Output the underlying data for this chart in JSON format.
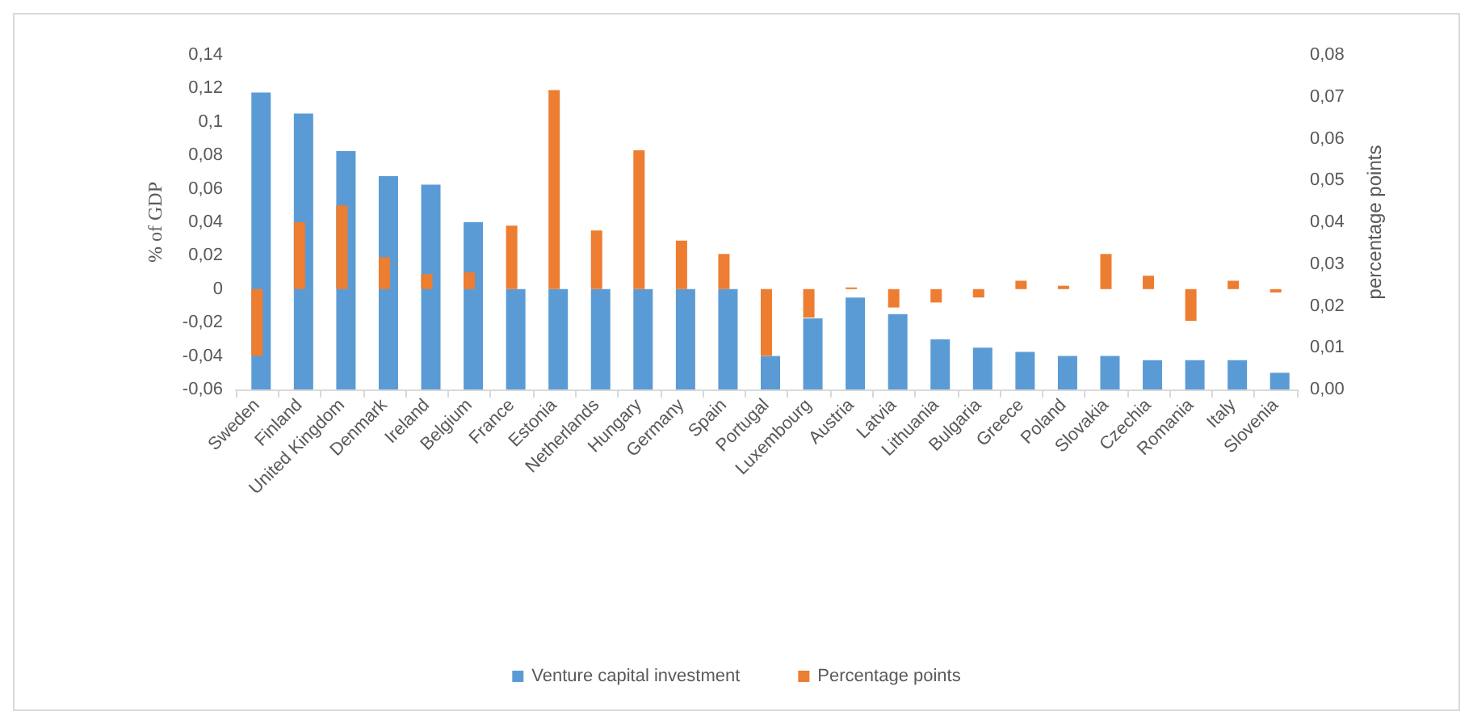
{
  "chart_data": {
    "type": "bar",
    "categories": [
      "Sweden",
      "Finland",
      "United Kingdom",
      "Denmark",
      "Ireland",
      "Belgium",
      "France",
      "Estonia",
      "Netherlands",
      "Hungary",
      "Germany",
      "Spain",
      "Portugal",
      "Luxembourg",
      "Austria",
      "Latvia",
      "Lithuania",
      "Bulgaria",
      "Greece",
      "Poland",
      "Slovakia",
      "Czechia",
      "Romania",
      "Italy",
      "Slovenia"
    ],
    "series": [
      {
        "name": "Venture capital investment",
        "color": "#5b9bd5",
        "axis": "y2",
        "values": [
          0.071,
          0.066,
          0.057,
          0.051,
          0.049,
          0.04,
          0.024,
          0.024,
          0.024,
          0.024,
          0.024,
          0.024,
          0.008,
          0.017,
          0.022,
          0.018,
          0.012,
          0.01,
          0.009,
          0.008,
          0.008,
          0.007,
          0.007,
          0.007,
          0.004
        ]
      },
      {
        "name": "Percentage points",
        "color": "#ed7d31",
        "axis": "y",
        "values": [
          -0.04,
          0.04,
          0.05,
          0.019,
          0.009,
          0.01,
          0.038,
          0.119,
          0.035,
          0.083,
          0.029,
          0.021,
          -0.04,
          -0.017,
          0.001,
          -0.011,
          -0.008,
          -0.005,
          0.005,
          0.002,
          0.021,
          0.008,
          -0.019,
          0.005,
          -0.002
        ]
      }
    ],
    "ylabel": "% of GDP",
    "y2label": "percentage points",
    "ylim": [
      -0.06,
      0.14
    ],
    "yticks": [
      {
        "value": -0.06,
        "label": "-0,06"
      },
      {
        "value": -0.04,
        "label": "-0,04"
      },
      {
        "value": -0.02,
        "label": "-0,02"
      },
      0,
      {
        "value": 0.02,
        "label": "0,02"
      },
      {
        "value": 0.04,
        "label": "0,04"
      },
      {
        "value": 0.06,
        "label": "0,06"
      },
      {
        "value": 0.08,
        "label": "0,08"
      },
      {
        "value": 0.1,
        "label": "0,1"
      },
      {
        "value": 0.12,
        "label": "0,12"
      },
      {
        "value": 0.14,
        "label": "0,14"
      }
    ],
    "y2lim": [
      0,
      0.08
    ],
    "y2ticks": [
      {
        "value": 0,
        "label": "0,00"
      },
      {
        "value": 0.01,
        "label": "0,01"
      },
      {
        "value": 0.02,
        "label": "0,02"
      },
      {
        "value": 0.03,
        "label": "0,03"
      },
      {
        "value": 0.04,
        "label": "0,04"
      },
      {
        "value": 0.05,
        "label": "0,05"
      },
      {
        "value": 0.06,
        "label": "0,06"
      },
      {
        "value": 0.07,
        "label": "0,07"
      },
      {
        "value": 0.08,
        "label": "0,08"
      }
    ],
    "grid": false,
    "legend": "bottom"
  }
}
